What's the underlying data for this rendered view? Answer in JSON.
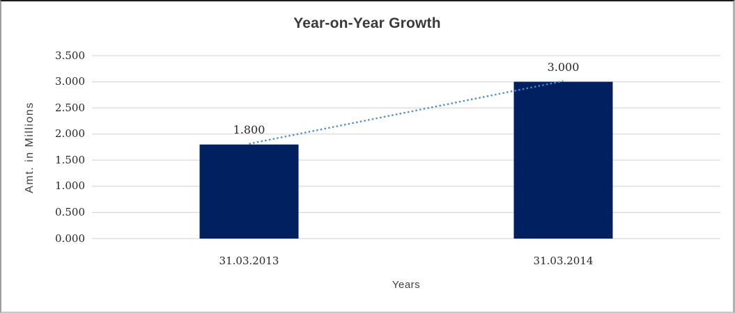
{
  "chart_data": {
    "type": "bar",
    "title": "Year-on-Year Growth",
    "xlabel": "Years",
    "ylabel": "Amt. in Millions",
    "categories": [
      "31.03.2013",
      "31.03.2014"
    ],
    "values": [
      1.8,
      3.0
    ],
    "data_labels": [
      "1.800",
      "3.000"
    ],
    "ytick_labels": [
      "3.500",
      "3.000",
      "2.500",
      "2.000",
      "1.500",
      "1.000",
      "0.500",
      "0.000"
    ],
    "ylim": [
      0,
      3.5
    ],
    "grid": "horizontal",
    "legend": "none",
    "trendline_style": "dotted",
    "colors": {
      "bar": "#002060",
      "trendline": "#4e8bd0",
      "gridline": "#d9d9d9",
      "title_text": "#3a3a3a",
      "axis_title_text": "#404040",
      "tick_text": "#262626",
      "background": "#ffffff"
    }
  }
}
